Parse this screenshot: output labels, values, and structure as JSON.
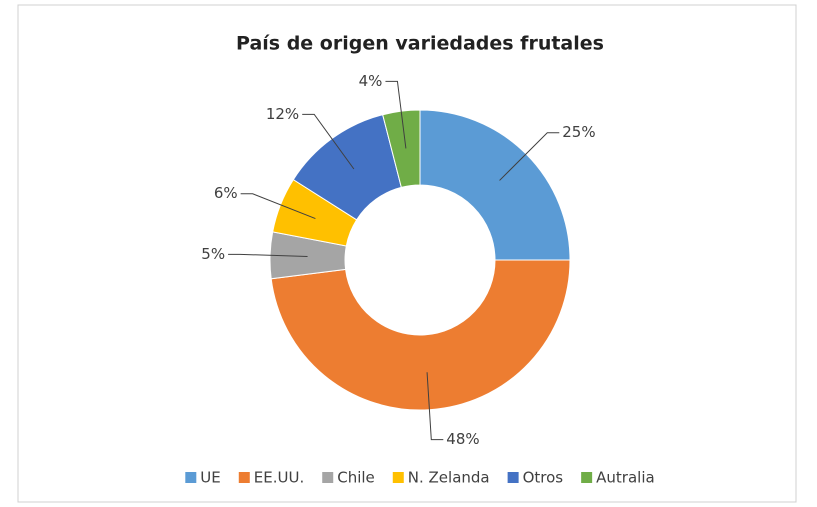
{
  "chart_data": {
    "type": "donut",
    "title": "País de origen variedades frutales",
    "categories": [
      "UE",
      "EE.UU.",
      "Chile",
      "N. Zelanda",
      "Otros",
      "Autralia"
    ],
    "values": [
      25,
      48,
      5,
      6,
      12,
      4
    ],
    "value_labels": [
      "25%",
      "48%",
      "5%",
      "6%",
      "12%",
      "4%"
    ],
    "colors": [
      "#5b9bd5",
      "#ed7d31",
      "#a5a5a5",
      "#ffc000",
      "#4472c4",
      "#70ad47"
    ],
    "legend": "bottom"
  }
}
